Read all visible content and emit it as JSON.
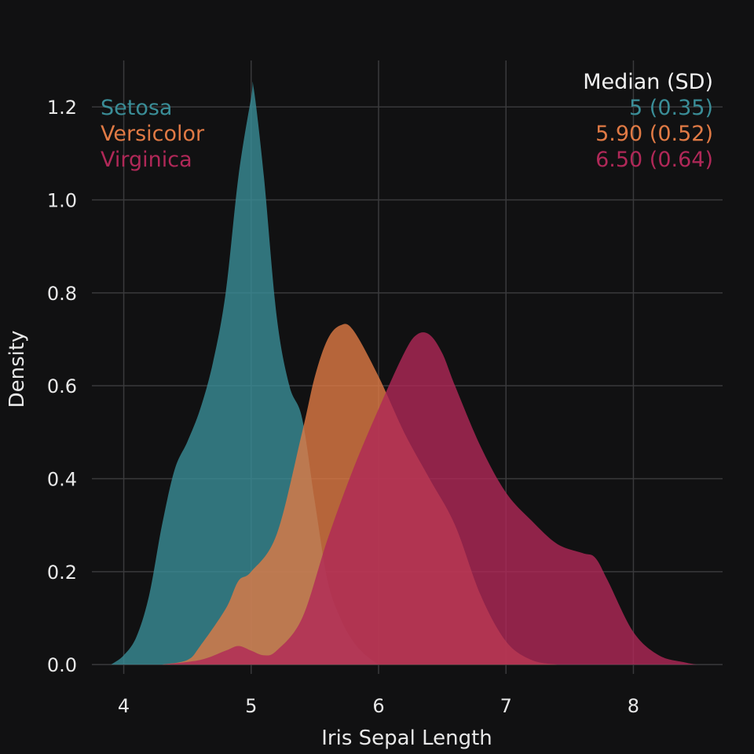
{
  "chart_data": {
    "type": "area",
    "xlabel": "Iris Sepal Length",
    "ylabel": "Density",
    "xlim": [
      3.75,
      8.7
    ],
    "ylim": [
      -0.02,
      1.3
    ],
    "x_ticks": [
      4,
      5,
      6,
      7,
      8
    ],
    "x_tick_labels": [
      "4",
      "5",
      "6",
      "7",
      "8"
    ],
    "y_ticks": [
      0.0,
      0.2,
      0.4,
      0.6,
      0.8,
      1.0,
      1.2
    ],
    "y_tick_labels": [
      "0.0",
      "0.2",
      "0.4",
      "0.6",
      "0.8",
      "1.0",
      "1.2"
    ],
    "grid": true,
    "legend": {
      "placement": "top-left",
      "stats_header": "Median (SD)"
    },
    "series": [
      {
        "name": "Setosa",
        "color": "#3a8d97",
        "stat_label": "5 (0.35)",
        "x": [
          3.9,
          4.0,
          4.1,
          4.2,
          4.3,
          4.4,
          4.5,
          4.6,
          4.7,
          4.8,
          4.9,
          5.0,
          5.02,
          5.1,
          5.2,
          5.3,
          5.4,
          5.5,
          5.6,
          5.7,
          5.8,
          5.9,
          6.0
        ],
        "y": [
          0.0,
          0.02,
          0.06,
          0.15,
          0.3,
          0.42,
          0.48,
          0.55,
          0.65,
          0.8,
          1.05,
          1.22,
          1.24,
          1.05,
          0.75,
          0.6,
          0.53,
          0.35,
          0.18,
          0.1,
          0.05,
          0.02,
          0.0
        ]
      },
      {
        "name": "Versicolor",
        "color": "#e07a45",
        "stat_label": "5.90 (0.52)",
        "x": [
          4.3,
          4.5,
          4.6,
          4.8,
          4.9,
          5.0,
          5.2,
          5.4,
          5.5,
          5.6,
          5.7,
          5.8,
          6.0,
          6.2,
          6.4,
          6.6,
          6.8,
          7.0,
          7.2,
          7.4
        ],
        "y": [
          0.0,
          0.01,
          0.04,
          0.12,
          0.18,
          0.2,
          0.28,
          0.5,
          0.62,
          0.7,
          0.73,
          0.72,
          0.62,
          0.5,
          0.4,
          0.3,
          0.15,
          0.05,
          0.01,
          0.0
        ]
      },
      {
        "name": "Virginica",
        "color": "#b02858",
        "stat_label": "6.50 (0.64)",
        "x": [
          4.3,
          4.6,
          4.8,
          4.9,
          5.0,
          5.1,
          5.2,
          5.4,
          5.6,
          5.8,
          6.0,
          6.2,
          6.3,
          6.4,
          6.5,
          6.6,
          6.8,
          7.0,
          7.2,
          7.4,
          7.6,
          7.7,
          7.8,
          8.0,
          8.2,
          8.4,
          8.5
        ],
        "y": [
          0.0,
          0.01,
          0.03,
          0.04,
          0.03,
          0.02,
          0.03,
          0.1,
          0.27,
          0.42,
          0.55,
          0.67,
          0.71,
          0.71,
          0.67,
          0.6,
          0.47,
          0.37,
          0.31,
          0.26,
          0.24,
          0.23,
          0.18,
          0.07,
          0.02,
          0.005,
          0.0
        ]
      }
    ]
  }
}
